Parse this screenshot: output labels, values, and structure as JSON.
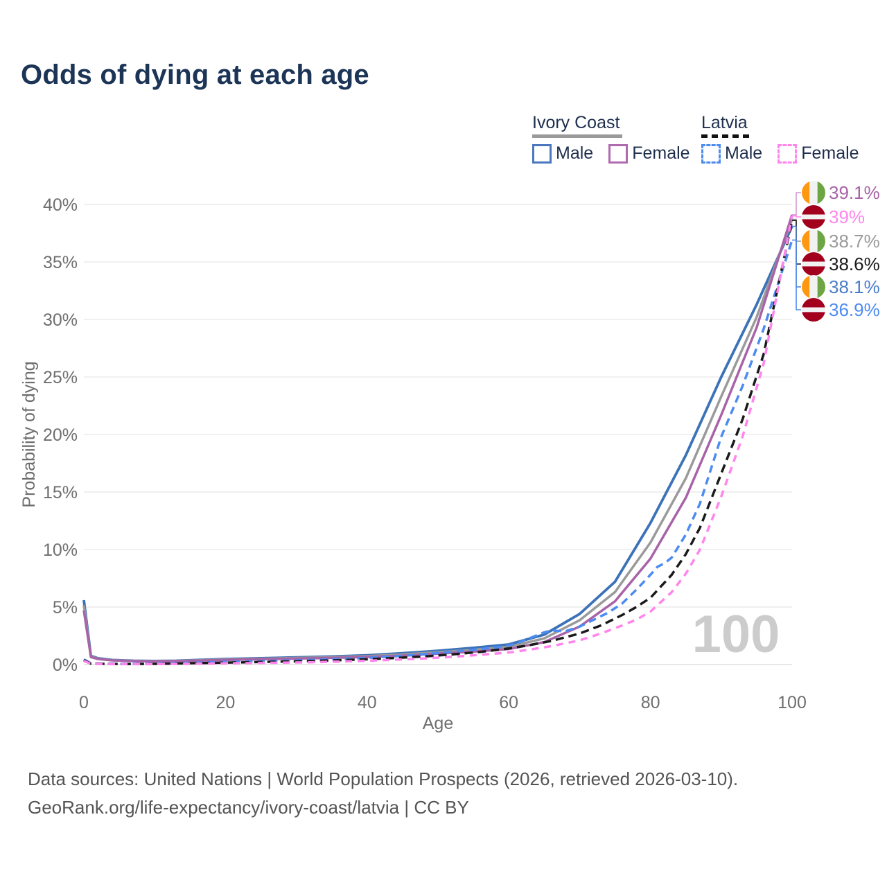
{
  "title": "Odds of dying at each age",
  "legend": {
    "groups": [
      {
        "name": "Ivory Coast",
        "style": "solid",
        "items": [
          {
            "label": "Male",
            "color": "#4a77bd"
          },
          {
            "label": "Female",
            "color": "#b06ab0"
          }
        ]
      },
      {
        "name": "Latvia",
        "style": "dashed",
        "items": [
          {
            "label": "Male",
            "color": "#4d8bf0"
          },
          {
            "label": "Female",
            "color": "#ff85ec"
          }
        ]
      }
    ]
  },
  "chart_data": {
    "type": "line",
    "title": "Odds of dying at each age",
    "xlabel": "Age",
    "ylabel": "Probability of dying",
    "xlim": [
      0,
      100
    ],
    "ylim": [
      0,
      40
    ],
    "xticks": [
      0,
      20,
      40,
      60,
      80,
      100
    ],
    "yticks": [
      0,
      5,
      10,
      15,
      20,
      25,
      30,
      35,
      40
    ],
    "ytick_suffix": "%",
    "grid": "horizontal",
    "legend_position": "top-right",
    "watermark": "100",
    "colors": {
      "grid": "#ececec",
      "axis_text": "#6e6e6e",
      "watermark": "#cccccc"
    },
    "series": [
      {
        "name": "Ivory Coast Male",
        "country": "Ivory Coast",
        "sex": "Male",
        "color": "#3b72b8",
        "dash": null,
        "width": 3.8,
        "points": [
          [
            0,
            5.6
          ],
          [
            1,
            0.75
          ],
          [
            2,
            0.55
          ],
          [
            4,
            0.4
          ],
          [
            7,
            0.33
          ],
          [
            10,
            0.31
          ],
          [
            13,
            0.33
          ],
          [
            16,
            0.4
          ],
          [
            20,
            0.48
          ],
          [
            25,
            0.55
          ],
          [
            30,
            0.62
          ],
          [
            35,
            0.7
          ],
          [
            40,
            0.8
          ],
          [
            45,
            0.98
          ],
          [
            50,
            1.2
          ],
          [
            55,
            1.45
          ],
          [
            60,
            1.75
          ],
          [
            65,
            2.6
          ],
          [
            70,
            4.4
          ],
          [
            75,
            7.2
          ],
          [
            80,
            12.3
          ],
          [
            85,
            18.2
          ],
          [
            90,
            25.0
          ],
          [
            95,
            31.3
          ],
          [
            100,
            38.1
          ]
        ]
      },
      {
        "name": "Ivory Coast Both sexes",
        "country": "Ivory Coast",
        "sex": "Both",
        "color": "#9a9a9a",
        "dash": null,
        "width": 3.5,
        "points": [
          [
            0,
            5.15
          ],
          [
            1,
            0.7
          ],
          [
            2,
            0.51
          ],
          [
            4,
            0.38
          ],
          [
            7,
            0.31
          ],
          [
            10,
            0.29
          ],
          [
            13,
            0.31
          ],
          [
            16,
            0.37
          ],
          [
            20,
            0.44
          ],
          [
            25,
            0.5
          ],
          [
            30,
            0.57
          ],
          [
            35,
            0.64
          ],
          [
            40,
            0.73
          ],
          [
            45,
            0.88
          ],
          [
            50,
            1.07
          ],
          [
            55,
            1.28
          ],
          [
            60,
            1.55
          ],
          [
            65,
            2.27
          ],
          [
            70,
            3.85
          ],
          [
            75,
            6.3
          ],
          [
            80,
            10.6
          ],
          [
            85,
            16.2
          ],
          [
            90,
            23.3
          ],
          [
            95,
            30.2
          ],
          [
            100,
            38.7
          ]
        ]
      },
      {
        "name": "Ivory Coast Female",
        "country": "Ivory Coast",
        "sex": "Female",
        "color": "#a863a8",
        "dash": null,
        "width": 3.5,
        "points": [
          [
            0,
            4.7
          ],
          [
            1,
            0.65
          ],
          [
            2,
            0.48
          ],
          [
            4,
            0.36
          ],
          [
            7,
            0.3
          ],
          [
            10,
            0.28
          ],
          [
            13,
            0.3
          ],
          [
            16,
            0.34
          ],
          [
            20,
            0.4
          ],
          [
            25,
            0.46
          ],
          [
            30,
            0.52
          ],
          [
            35,
            0.58
          ],
          [
            40,
            0.66
          ],
          [
            45,
            0.78
          ],
          [
            50,
            0.95
          ],
          [
            55,
            1.12
          ],
          [
            60,
            1.35
          ],
          [
            65,
            1.95
          ],
          [
            70,
            3.3
          ],
          [
            75,
            5.5
          ],
          [
            80,
            9.2
          ],
          [
            85,
            14.5
          ],
          [
            90,
            21.7
          ],
          [
            95,
            29.3
          ],
          [
            100,
            39.1
          ]
        ]
      },
      {
        "name": "Latvia Male",
        "country": "Latvia",
        "sex": "Male",
        "color": "#4d8bf0",
        "dash": "11,7",
        "width": 3.5,
        "points": [
          [
            0,
            0.45
          ],
          [
            1,
            0.1
          ],
          [
            3,
            0.07
          ],
          [
            6,
            0.06
          ],
          [
            10,
            0.08
          ],
          [
            14,
            0.13
          ],
          [
            17,
            0.18
          ],
          [
            20,
            0.22
          ],
          [
            24,
            0.27
          ],
          [
            28,
            0.33
          ],
          [
            32,
            0.4
          ],
          [
            36,
            0.48
          ],
          [
            40,
            0.58
          ],
          [
            44,
            0.72
          ],
          [
            48,
            0.9
          ],
          [
            52,
            1.1
          ],
          [
            56,
            1.35
          ],
          [
            59,
            1.55
          ],
          [
            61,
            1.8
          ],
          [
            63,
            2.3
          ],
          [
            65,
            2.8
          ],
          [
            66,
            2.95
          ],
          [
            68,
            2.9
          ],
          [
            70,
            3.3
          ],
          [
            72,
            3.9
          ],
          [
            74,
            4.5
          ],
          [
            76,
            5.3
          ],
          [
            78,
            6.5
          ],
          [
            80,
            7.8
          ],
          [
            81,
            8.5
          ],
          [
            82,
            8.8
          ],
          [
            83,
            9.3
          ],
          [
            85,
            11.3
          ],
          [
            87,
            14.0
          ],
          [
            90,
            19.8
          ],
          [
            93,
            24.2
          ],
          [
            96,
            29.2
          ],
          [
            100,
            36.9
          ]
        ]
      },
      {
        "name": "Latvia Both sexes",
        "country": "Latvia",
        "sex": "Both",
        "color": "#1a1a1a",
        "dash": "12,7",
        "width": 3.5,
        "points": [
          [
            0,
            0.38
          ],
          [
            1,
            0.08
          ],
          [
            3,
            0.06
          ],
          [
            6,
            0.05
          ],
          [
            10,
            0.06
          ],
          [
            14,
            0.1
          ],
          [
            17,
            0.14
          ],
          [
            20,
            0.17
          ],
          [
            24,
            0.21
          ],
          [
            28,
            0.26
          ],
          [
            32,
            0.31
          ],
          [
            36,
            0.38
          ],
          [
            40,
            0.46
          ],
          [
            44,
            0.57
          ],
          [
            48,
            0.7
          ],
          [
            52,
            0.88
          ],
          [
            56,
            1.1
          ],
          [
            60,
            1.4
          ],
          [
            63,
            1.7
          ],
          [
            66,
            2.05
          ],
          [
            70,
            2.7
          ],
          [
            73,
            3.4
          ],
          [
            76,
            4.3
          ],
          [
            78,
            5.0
          ],
          [
            80,
            5.8
          ],
          [
            83,
            7.8
          ],
          [
            85,
            9.6
          ],
          [
            87,
            11.9
          ],
          [
            90,
            16.6
          ],
          [
            93,
            21.3
          ],
          [
            96,
            27.0
          ],
          [
            100,
            38.6
          ]
        ]
      },
      {
        "name": "Latvia Female",
        "country": "Latvia",
        "sex": "Female",
        "color": "#ff85ec",
        "dash": "10,8",
        "width": 3.5,
        "points": [
          [
            0,
            0.32
          ],
          [
            1,
            0.06
          ],
          [
            3,
            0.04
          ],
          [
            6,
            0.035
          ],
          [
            10,
            0.04
          ],
          [
            14,
            0.06
          ],
          [
            17,
            0.08
          ],
          [
            20,
            0.1
          ],
          [
            24,
            0.13
          ],
          [
            28,
            0.16
          ],
          [
            32,
            0.2
          ],
          [
            36,
            0.26
          ],
          [
            40,
            0.33
          ],
          [
            44,
            0.42
          ],
          [
            48,
            0.53
          ],
          [
            52,
            0.67
          ],
          [
            56,
            0.85
          ],
          [
            60,
            1.05
          ],
          [
            63,
            1.3
          ],
          [
            66,
            1.6
          ],
          [
            70,
            2.1
          ],
          [
            73,
            2.7
          ],
          [
            76,
            3.4
          ],
          [
            78,
            3.9
          ],
          [
            80,
            4.6
          ],
          [
            83,
            6.3
          ],
          [
            85,
            7.9
          ],
          [
            87,
            10.0
          ],
          [
            90,
            14.6
          ],
          [
            93,
            19.8
          ],
          [
            96,
            26.2
          ],
          [
            100,
            39.0
          ]
        ]
      }
    ],
    "end_labels": [
      {
        "text": "39.1%",
        "value": 39.1,
        "color": "#a863a8",
        "leader": "#d29ad2",
        "flag": "ivory-coast",
        "row": 278
      },
      {
        "text": "39%",
        "value": 39.0,
        "color": "#ff85ec",
        "leader": "#ff85ec",
        "flag": "latvia",
        "row": 313
      },
      {
        "text": "38.7%",
        "value": 38.7,
        "color": "#9a9a9a",
        "leader": "#9a9a9a",
        "flag": "ivory-coast",
        "row": 348
      },
      {
        "text": "38.6%",
        "value": 38.6,
        "color": "#1a1a1a",
        "leader": "#1a1a1a",
        "flag": "latvia",
        "row": 381
      },
      {
        "text": "38.1%",
        "value": 38.1,
        "color": "#4a7dc9",
        "leader": "#4a7dc9",
        "flag": "ivory-coast",
        "row": 414
      },
      {
        "text": "36.9%",
        "value": 36.9,
        "color": "#4d8bf0",
        "leader": "#4d8bf0",
        "flag": "latvia",
        "row": 447
      }
    ],
    "flag_colors": {
      "ivory_coast": [
        "#FF9811",
        "#F2F2F2",
        "#6DA544"
      ],
      "latvia": [
        "#A2001D",
        "#F2F2F2"
      ]
    }
  },
  "footer": {
    "line1": "Data sources: United Nations | World Population Prospects (2026, retrieved 2026-03-10).",
    "line2": "GeoRank.org/life-expectancy/ivory-coast/latvia | CC BY"
  }
}
